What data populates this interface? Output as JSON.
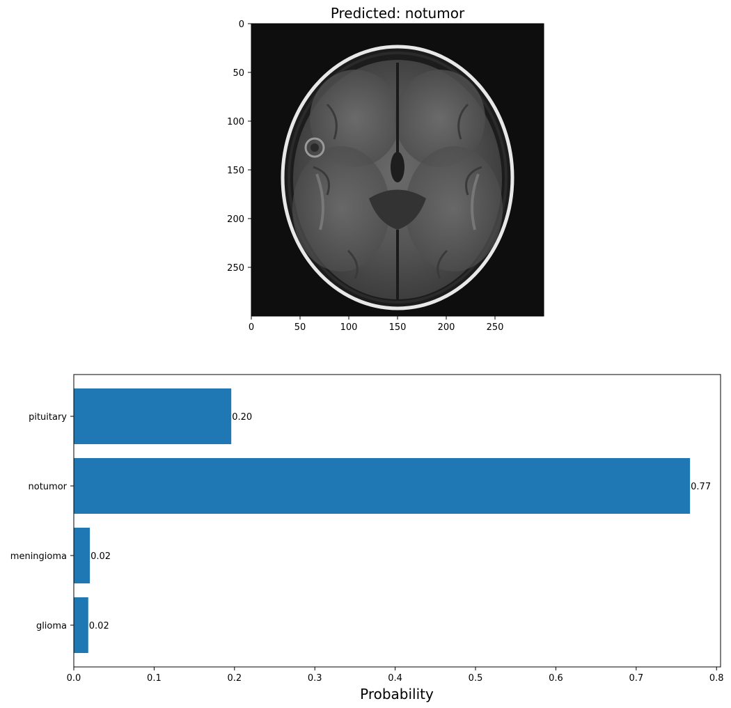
{
  "top_panel": {
    "title": "Predicted: notumor",
    "x_ticks": [
      0,
      50,
      100,
      150,
      200,
      250
    ],
    "y_ticks": [
      0,
      50,
      100,
      150,
      200,
      250
    ],
    "extent": [
      0,
      300
    ],
    "image": "brain-mri-axial-scan"
  },
  "chart_data": {
    "type": "bar",
    "orientation": "horizontal",
    "categories": [
      "glioma",
      "meningioma",
      "notumor",
      "pituitary"
    ],
    "values": [
      0.018,
      0.02,
      0.767,
      0.196
    ],
    "value_labels": [
      "0.02",
      "0.02",
      "0.77",
      "0.20"
    ],
    "xlabel": "Probability",
    "ylabel": "",
    "xlim": [
      0,
      0.805
    ],
    "x_ticks": [
      "0.0",
      "0.1",
      "0.2",
      "0.3",
      "0.4",
      "0.5",
      "0.6",
      "0.7",
      "0.8"
    ],
    "grid": false,
    "bar_color": "#1f77b4"
  }
}
